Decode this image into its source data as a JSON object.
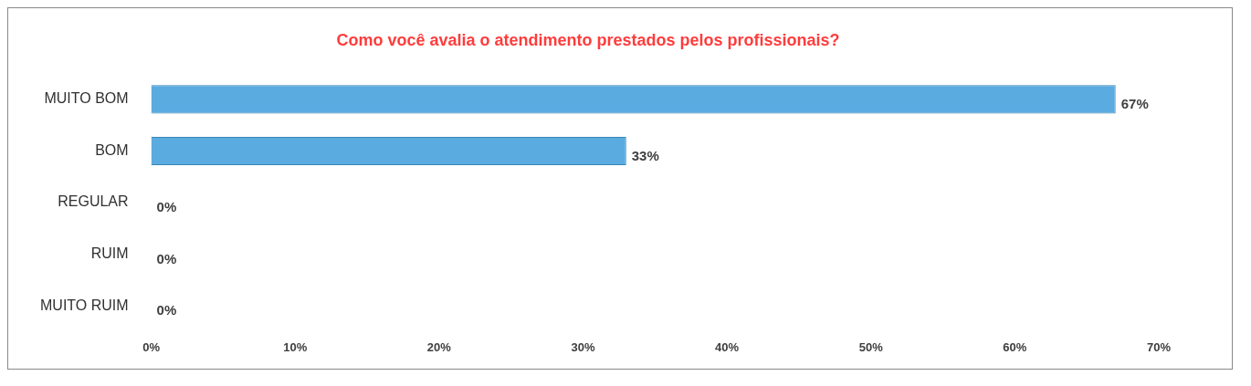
{
  "chart_data": {
    "type": "bar",
    "orientation": "horizontal",
    "title": "Como você avalia o atendimento prestados pelos profissionais?",
    "categories": [
      "MUITO BOM",
      "BOM",
      "REGULAR",
      "RUIM",
      "MUITO RUIM"
    ],
    "values": [
      67,
      33,
      0,
      0,
      0
    ],
    "value_labels": [
      "67%",
      "33%",
      "0%",
      "0%",
      "0%"
    ],
    "color": "#5aabe0",
    "xlim": [
      0,
      70
    ],
    "xticks": [
      {
        "value": 0,
        "label": "0%"
      },
      {
        "value": 10,
        "label": "10%"
      },
      {
        "value": 20,
        "label": "20%"
      },
      {
        "value": 30,
        "label": "30%"
      },
      {
        "value": 40,
        "label": "40%"
      },
      {
        "value": 50,
        "label": "50%"
      },
      {
        "value": 60,
        "label": "60%"
      },
      {
        "value": 70,
        "label": "70%"
      }
    ],
    "grid": false,
    "legend": false
  }
}
